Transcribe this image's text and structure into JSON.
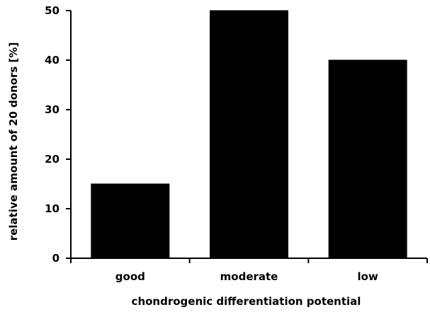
{
  "chart_data": {
    "type": "bar",
    "title": "",
    "categories": [
      "good",
      "moderate",
      "low"
    ],
    "values": [
      15,
      50,
      40
    ],
    "xlabel": "chondrogenic differentiation potential",
    "ylabel": "relative amount of 20 donors [%]",
    "ylim": [
      0,
      50
    ],
    "yticks": [
      "0",
      "10",
      "20",
      "30",
      "40",
      "50"
    ],
    "grid": false,
    "legend": "none",
    "bar_color": "#000000"
  }
}
